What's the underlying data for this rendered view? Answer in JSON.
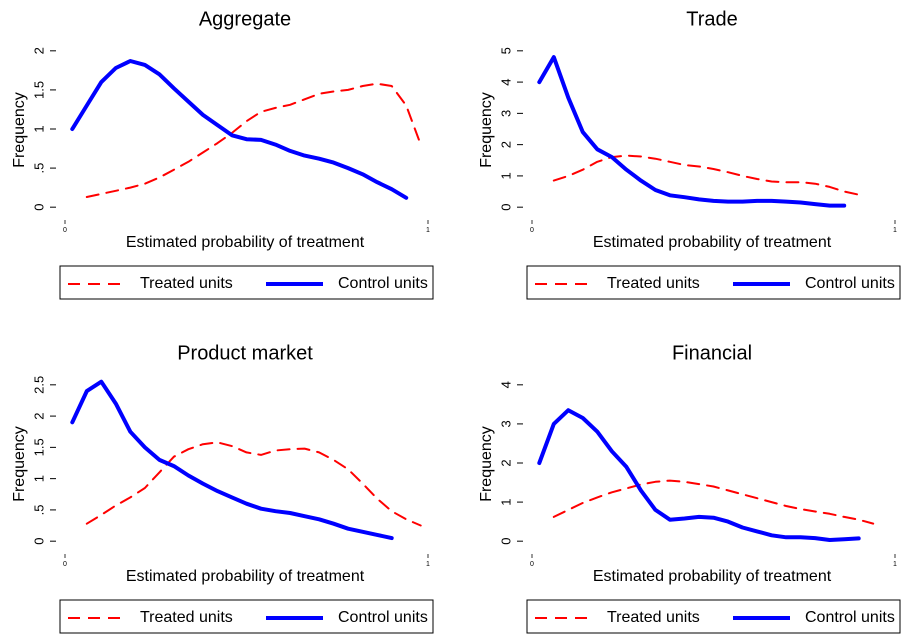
{
  "chart_data": [
    {
      "type": "line",
      "title": "Aggregate",
      "xlabel": "Estimated probability of treatment",
      "ylabel": "Frequency",
      "xlim": [
        0,
        1
      ],
      "xticks": [
        0,
        1
      ],
      "ylim": [
        -0.1,
        2.1
      ],
      "yticks": [
        0,
        {
          "value": 0.5,
          "label": ".5"
        },
        1,
        1.5,
        2
      ],
      "x": [
        0.02,
        0.06,
        0.1,
        0.14,
        0.18,
        0.22,
        0.26,
        0.3,
        0.34,
        0.38,
        0.42,
        0.46,
        0.5,
        0.54,
        0.58,
        0.62,
        0.66,
        0.7,
        0.74,
        0.78,
        0.82,
        0.86,
        0.9,
        0.94,
        0.98
      ],
      "series": [
        {
          "name": "Treated units",
          "color": "#ff0000",
          "dash": true,
          "values": [
            null,
            0.13,
            0.17,
            0.21,
            0.25,
            0.3,
            0.38,
            0.48,
            0.58,
            0.7,
            0.82,
            0.95,
            1.1,
            1.22,
            1.27,
            1.31,
            1.38,
            1.45,
            1.48,
            1.5,
            1.55,
            1.58,
            1.55,
            1.3,
            0.8
          ]
        },
        {
          "name": "Control units",
          "color": "#0000ff",
          "dash": false,
          "values": [
            1.0,
            1.3,
            1.6,
            1.78,
            1.87,
            1.82,
            1.7,
            1.52,
            1.35,
            1.18,
            1.05,
            0.92,
            0.87,
            0.86,
            0.8,
            0.72,
            0.66,
            0.62,
            0.57,
            0.5,
            0.42,
            0.32,
            0.23,
            0.12,
            null
          ]
        }
      ]
    },
    {
      "type": "line",
      "title": "Trade",
      "xlabel": "Estimated probability of treatment",
      "ylabel": "Frequency",
      "xlim": [
        0,
        1
      ],
      "xticks": [
        0,
        1
      ],
      "ylim": [
        -0.25,
        5.25
      ],
      "yticks": [
        0,
        1,
        2,
        3,
        4,
        5
      ],
      "x": [
        0.02,
        0.06,
        0.1,
        0.14,
        0.18,
        0.22,
        0.26,
        0.3,
        0.34,
        0.38,
        0.42,
        0.46,
        0.5,
        0.54,
        0.58,
        0.62,
        0.66,
        0.7,
        0.74,
        0.78,
        0.82,
        0.86,
        0.9,
        0.94,
        0.98
      ],
      "series": [
        {
          "name": "Treated units",
          "color": "#ff0000",
          "dash": true,
          "values": [
            null,
            0.85,
            1.0,
            1.2,
            1.45,
            1.6,
            1.65,
            1.62,
            1.55,
            1.45,
            1.35,
            1.3,
            1.22,
            1.12,
            1.0,
            0.9,
            0.82,
            0.8,
            0.8,
            0.75,
            0.65,
            0.5,
            0.4,
            null,
            null
          ]
        },
        {
          "name": "Control units",
          "color": "#0000ff",
          "dash": false,
          "values": [
            4.0,
            4.8,
            3.5,
            2.4,
            1.85,
            1.6,
            1.2,
            0.85,
            0.55,
            0.38,
            0.32,
            0.25,
            0.2,
            0.18,
            0.18,
            0.2,
            0.2,
            0.18,
            0.15,
            0.1,
            0.05,
            0.05,
            null,
            null,
            null
          ]
        }
      ]
    },
    {
      "type": "line",
      "title": "Product market",
      "xlabel": "Estimated probability of treatment",
      "ylabel": "Frequency",
      "xlim": [
        0,
        1
      ],
      "xticks": [
        0,
        1
      ],
      "ylim": [
        -0.125,
        2.625
      ],
      "yticks": [
        0,
        {
          "value": 0.5,
          "label": ".5"
        },
        1,
        1.5,
        2,
        2.5
      ],
      "x": [
        0.02,
        0.06,
        0.1,
        0.14,
        0.18,
        0.22,
        0.26,
        0.3,
        0.34,
        0.38,
        0.42,
        0.46,
        0.5,
        0.54,
        0.58,
        0.62,
        0.66,
        0.7,
        0.74,
        0.78,
        0.82,
        0.86,
        0.9,
        0.94,
        0.98
      ],
      "series": [
        {
          "name": "Treated units",
          "color": "#ff0000",
          "dash": true,
          "values": [
            null,
            0.28,
            0.42,
            0.57,
            0.7,
            0.85,
            1.1,
            1.35,
            1.47,
            1.55,
            1.58,
            1.52,
            1.42,
            1.38,
            1.45,
            1.47,
            1.48,
            1.42,
            1.3,
            1.15,
            0.92,
            0.68,
            0.48,
            0.35,
            0.25
          ]
        },
        {
          "name": "Control units",
          "color": "#0000ff",
          "dash": false,
          "values": [
            1.9,
            2.4,
            2.55,
            2.2,
            1.75,
            1.5,
            1.3,
            1.2,
            1.05,
            0.92,
            0.8,
            0.7,
            0.6,
            0.52,
            0.48,
            0.45,
            0.4,
            0.35,
            0.28,
            0.2,
            0.15,
            0.1,
            0.05,
            null,
            null
          ]
        }
      ]
    },
    {
      "type": "line",
      "title": "Financial",
      "xlabel": "Estimated probability of treatment",
      "ylabel": "Frequency",
      "xlim": [
        0,
        1
      ],
      "xticks": [
        0,
        1
      ],
      "ylim": [
        -0.2,
        4.2
      ],
      "yticks": [
        0,
        1,
        2,
        3,
        4
      ],
      "x": [
        0.02,
        0.06,
        0.1,
        0.14,
        0.18,
        0.22,
        0.26,
        0.3,
        0.34,
        0.38,
        0.42,
        0.46,
        0.5,
        0.54,
        0.58,
        0.62,
        0.66,
        0.7,
        0.74,
        0.78,
        0.82,
        0.86,
        0.9,
        0.94,
        0.98
      ],
      "series": [
        {
          "name": "Treated units",
          "color": "#ff0000",
          "dash": true,
          "values": [
            null,
            0.62,
            0.8,
            0.98,
            1.12,
            1.25,
            1.35,
            1.45,
            1.52,
            1.55,
            1.52,
            1.46,
            1.4,
            1.3,
            1.2,
            1.1,
            1.0,
            0.9,
            0.82,
            0.76,
            0.7,
            0.62,
            0.55,
            0.45,
            null
          ]
        },
        {
          "name": "Control units",
          "color": "#0000ff",
          "dash": false,
          "values": [
            2.0,
            3.0,
            3.35,
            3.15,
            2.8,
            2.3,
            1.9,
            1.3,
            0.8,
            0.55,
            0.58,
            0.62,
            0.6,
            0.5,
            0.35,
            0.25,
            0.15,
            0.1,
            0.1,
            0.08,
            0.03,
            0.05,
            0.07,
            null,
            null
          ]
        }
      ]
    }
  ]
}
